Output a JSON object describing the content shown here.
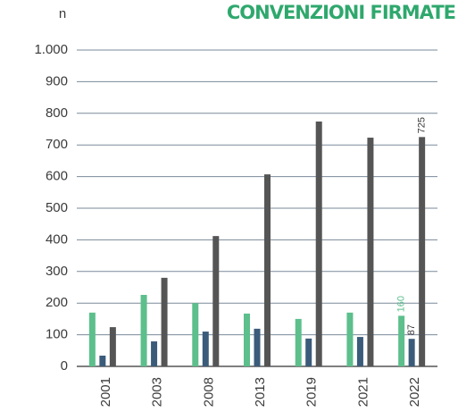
{
  "chart_data": {
    "type": "bar",
    "title": "CONVENZIONI FIRMATE",
    "y_label": "n",
    "categories": [
      "2001",
      "2003",
      "2008",
      "2013",
      "2019",
      "2021",
      "2022"
    ],
    "series": [
      {
        "color": "#5cbf8c",
        "values": [
          170,
          226,
          200,
          167,
          150,
          170,
          160
        ],
        "value_labels": [
          null,
          null,
          null,
          null,
          null,
          null,
          "160"
        ]
      },
      {
        "color": "#3b5b7a",
        "values": [
          34,
          79,
          110,
          119,
          88,
          93,
          87
        ],
        "value_labels": [
          null,
          null,
          null,
          null,
          null,
          null,
          "87"
        ]
      },
      {
        "color": "#555555",
        "values": [
          124,
          280,
          412,
          607,
          774,
          723,
          725
        ],
        "value_labels": [
          null,
          null,
          null,
          null,
          null,
          null,
          "725"
        ]
      }
    ],
    "ylim": [
      0,
      1000
    ],
    "yticks": [
      0,
      100,
      200,
      300,
      400,
      500,
      600,
      700,
      800,
      900,
      {
        "value": 1000,
        "label": "1.000"
      }
    ],
    "grid": true
  }
}
